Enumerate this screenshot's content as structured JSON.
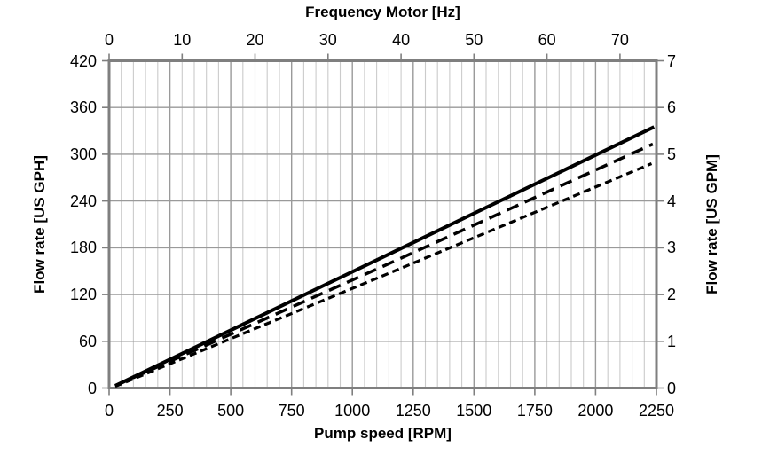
{
  "chart_data": {
    "type": "line",
    "title": "",
    "legend": "none",
    "grid": {
      "vertical_minor": true,
      "vertical_major": true,
      "horizontal_major": true,
      "horizontal_minor": false
    },
    "axes": {
      "top": {
        "title": "Frequency Motor [Hz]",
        "min": 0,
        "max": 75,
        "ticks": [
          0,
          10,
          20,
          30,
          40,
          50,
          60,
          70
        ]
      },
      "bottom": {
        "title": "Pump speed [RPM]",
        "min": 0,
        "max": 2250,
        "major_step": 250,
        "minor_step": 50,
        "ticks": [
          0,
          250,
          500,
          750,
          1000,
          1250,
          1500,
          1750,
          2000,
          2250
        ]
      },
      "left": {
        "title": "Flow rate [US GPH]",
        "min": 0,
        "max": 420,
        "ticks": [
          0,
          60,
          120,
          180,
          240,
          300,
          360,
          420
        ]
      },
      "right": {
        "title": "Flow rate [US GPM]",
        "min": 0,
        "max": 7,
        "ticks": [
          0,
          1,
          2,
          3,
          4,
          5,
          6,
          7
        ]
      }
    },
    "unit_relations": {
      "rpm_per_hz": 30,
      "gph_per_gpm": 60
    },
    "series": [
      {
        "name": "solid-line",
        "style": "solid",
        "color": "#000000",
        "width": 4,
        "dash": "",
        "points_rpm_gph": [
          [
            25,
            3
          ],
          [
            1125,
            168
          ],
          [
            2240,
            335
          ]
        ]
      },
      {
        "name": "long-dash-line",
        "style": "long-dash",
        "color": "#000000",
        "width": 3.5,
        "dash": "14 8",
        "points_rpm_gph": [
          [
            25,
            3
          ],
          [
            1125,
            156
          ],
          [
            2235,
            313
          ]
        ]
      },
      {
        "name": "short-dash-line",
        "style": "short-dash",
        "color": "#000000",
        "width": 3.2,
        "dash": "8 5",
        "points_rpm_gph": [
          [
            25,
            2
          ],
          [
            1125,
            144
          ],
          [
            2230,
            288
          ]
        ]
      }
    ],
    "colors": {
      "background": "#ffffff",
      "minor_grid": "#cbcbcb",
      "major_grid": "#9a9a9a",
      "axis_border": "#7f7f7f",
      "tick_mark": "#7f7f7f",
      "text": "#000000",
      "line": "#000000"
    }
  }
}
